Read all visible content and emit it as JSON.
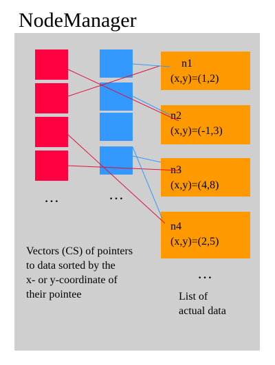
{
  "title": "NodeManager",
  "nodes": [
    {
      "name": "n1",
      "coord": "(x,y)=(1,2)"
    },
    {
      "name": "n2",
      "coord": "(x,y)=(-1,3)"
    },
    {
      "name": "n3",
      "coord": "(x,y)=(4,8)"
    },
    {
      "name": "n4",
      "coord": "(x,y)=(2,5)"
    }
  ],
  "ellipsis": "…",
  "vectors_caption": [
    "Vectors (CS) of pointers",
    "to data sorted by the",
    "x- or y-coordinate of",
    "their pointee"
  ],
  "list_caption": [
    "List of",
    "actual data"
  ],
  "colors": {
    "panel": "#cfcfcf",
    "red_vector": "#ff0040",
    "blue_vector": "#3399ff",
    "node": "#ff9900",
    "red_pointer_line": "#e0103a",
    "blue_pointer_line": "#3399ff"
  }
}
